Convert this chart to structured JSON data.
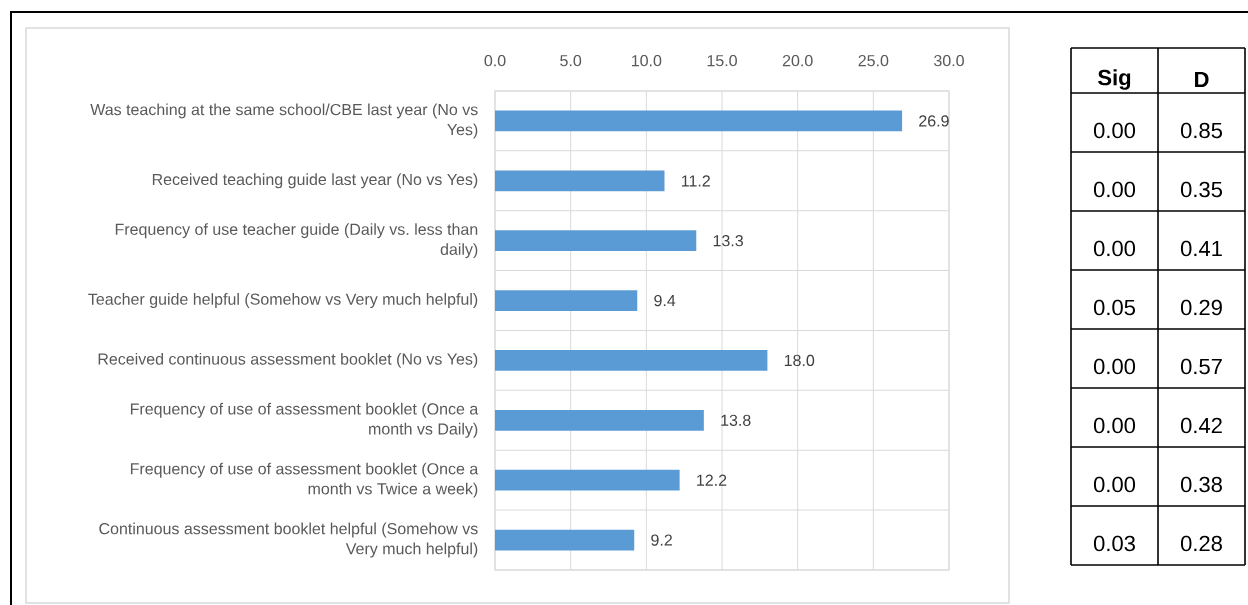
{
  "chart_data": [
    {
      "type": "bar",
      "orientation": "horizontal",
      "categories": [
        "Was teaching at the same school/CBE last year (No vs Yes)",
        "Received teaching guide last year (No vs Yes)",
        "Frequency of use teacher guide (Daily vs. less than daily)",
        "Teacher guide helpful (Somehow vs Very much helpful)",
        "Received continuous assessment booklet (No vs Yes)",
        "Frequency of use of assessment booklet (Once a month vs Daily)",
        "Frequency of use of assessment booklet (Once a month vs Twice a week)",
        "Continuous assessment booklet helpful (Somehow vs Very much helpful)"
      ],
      "values": [
        26.9,
        11.2,
        13.3,
        9.4,
        18.0,
        13.8,
        12.2,
        9.2
      ],
      "value_labels": [
        "26.9",
        "11.2",
        "13.3",
        "9.4",
        "18.0",
        "13.8",
        "12.2",
        "9.2"
      ],
      "color": "#5b9bd5",
      "xlim": [
        0,
        30
      ],
      "xticks": [
        {
          "value": 0,
          "label": "0.0"
        },
        {
          "value": 5,
          "label": "5.0"
        },
        {
          "value": 10,
          "label": "10.0"
        },
        {
          "value": 15,
          "label": "15.0"
        },
        {
          "value": 20,
          "label": "20.0"
        },
        {
          "value": 25,
          "label": "25.0"
        },
        {
          "value": 30,
          "label": "30.0"
        }
      ],
      "grid": true
    },
    {
      "type": "other",
      "categories": [
        "Sig",
        "D"
      ],
      "cell_labels": [
        [
          "0.00",
          "0.85"
        ],
        [
          "0.00",
          "0.35"
        ],
        [
          "0.00",
          "0.41"
        ],
        [
          "0.05",
          "0.29"
        ],
        [
          "0.00",
          "0.57"
        ],
        [
          "0.00",
          "0.42"
        ],
        [
          "0.00",
          "0.38"
        ],
        [
          "0.03",
          "0.28"
        ]
      ]
    }
  ]
}
